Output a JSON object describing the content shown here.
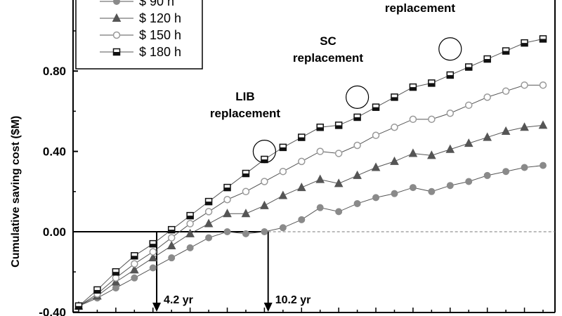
{
  "chart_data": {
    "type": "line",
    "title": "",
    "ylabel": "Cumulative saving cost ($M)",
    "xlabel": "",
    "ylim": [
      -0.4,
      1.1
    ],
    "xlim": [
      0,
      25.5
    ],
    "yticks": [
      -0.4,
      0.0,
      0.4,
      0.8
    ],
    "ytick_labels": [
      "-0.40",
      "0.00",
      "0.40",
      "0.80"
    ],
    "grid": false,
    "legend_position": "top-left",
    "x": [
      0,
      1,
      2,
      3,
      4,
      5,
      6,
      7,
      8,
      9,
      10,
      11,
      12,
      13,
      14,
      15,
      16,
      17,
      18,
      19,
      20,
      21,
      22,
      23,
      24,
      25
    ],
    "series": [
      {
        "name": "$ 90 h",
        "marker": "circle-filled",
        "color": "#888888",
        "values": [
          -0.37,
          -0.33,
          -0.28,
          -0.23,
          -0.18,
          -0.13,
          -0.08,
          -0.03,
          0.0,
          -0.01,
          0.0,
          0.02,
          0.06,
          0.12,
          0.1,
          0.14,
          0.17,
          0.19,
          0.22,
          0.2,
          0.23,
          0.25,
          0.28,
          0.3,
          0.32,
          0.33
        ]
      },
      {
        "name": "$ 120 h",
        "marker": "triangle-filled",
        "color": "#666666",
        "values": [
          -0.37,
          -0.32,
          -0.25,
          -0.19,
          -0.13,
          -0.07,
          -0.01,
          0.04,
          0.09,
          0.09,
          0.13,
          0.18,
          0.22,
          0.26,
          0.24,
          0.28,
          0.32,
          0.35,
          0.39,
          0.38,
          0.41,
          0.44,
          0.47,
          0.5,
          0.52,
          0.53
        ]
      },
      {
        "name": "$ 150 h",
        "marker": "circle-open",
        "color": "#888888",
        "values": [
          -0.37,
          -0.31,
          -0.23,
          -0.16,
          -0.1,
          -0.03,
          0.04,
          0.1,
          0.16,
          0.2,
          0.25,
          0.3,
          0.35,
          0.4,
          0.39,
          0.43,
          0.48,
          0.52,
          0.56,
          0.56,
          0.59,
          0.63,
          0.67,
          0.7,
          0.73,
          0.73
        ]
      },
      {
        "name": "$ 180 h",
        "marker": "square-halffilled",
        "color": "#222222",
        "values": [
          -0.37,
          -0.29,
          -0.2,
          -0.12,
          -0.06,
          0.01,
          0.08,
          0.15,
          0.22,
          0.29,
          0.36,
          0.42,
          0.47,
          0.52,
          0.53,
          0.57,
          0.62,
          0.67,
          0.72,
          0.74,
          0.78,
          0.82,
          0.86,
          0.9,
          0.94,
          0.96
        ]
      }
    ],
    "annotations": [
      {
        "text_lines": [
          "LIB",
          "replacement"
        ],
        "series": "$ 180 h",
        "x": 10,
        "y": 0.4
      },
      {
        "text_lines": [
          "SC",
          "replacement"
        ],
        "series": "$ 180 h",
        "x": 15,
        "y": 0.67
      },
      {
        "text_lines": [
          "replacement"
        ],
        "series": "$ 180 h",
        "x": 20,
        "y": 0.91
      }
    ],
    "markers": [
      {
        "label": "4.2 yr",
        "x": 4.2
      },
      {
        "label": "10.2 yr",
        "x": 10.2
      }
    ]
  }
}
